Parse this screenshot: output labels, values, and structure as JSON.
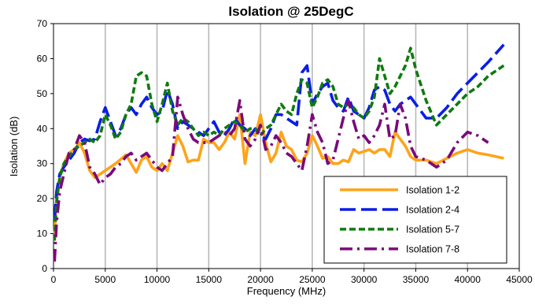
{
  "chart_data": {
    "type": "line",
    "title": "Isolation @ 25DegC",
    "xlabel": "Frequency (MHz)",
    "ylabel": "Isolation (dB)",
    "xlim": [
      0,
      45000
    ],
    "ylim": [
      0,
      70
    ],
    "xticks": [
      0,
      5000,
      10000,
      15000,
      20000,
      25000,
      30000,
      35000,
      40000,
      45000
    ],
    "yticks": [
      0,
      10,
      20,
      30,
      40,
      50,
      60,
      70
    ],
    "grid": "vertical",
    "legend_position": "lower-right",
    "series": [
      {
        "name": "Isolation 1-2",
        "color": "#FFA31A",
        "dash": "solid",
        "x": [
          100,
          300,
          600,
          1000,
          1500,
          2000,
          2500,
          3000,
          3500,
          4000,
          5000,
          6000,
          7000,
          7500,
          8000,
          8500,
          9000,
          9500,
          10000,
          10500,
          11000,
          11500,
          12000,
          12500,
          13000,
          13500,
          14000,
          14500,
          15000,
          15500,
          16000,
          16500,
          17000,
          17500,
          18000,
          18500,
          19000,
          19500,
          20000,
          20500,
          21000,
          21500,
          22000,
          22500,
          23000,
          23500,
          24000,
          24500,
          25000,
          25500,
          26000,
          26500,
          27000,
          27500,
          28000,
          28500,
          29000,
          29500,
          30000,
          30500,
          31000,
          31500,
          32000,
          32500,
          33000,
          33500,
          34000,
          34500,
          35000,
          36000,
          37000,
          38000,
          39000,
          40000,
          41000,
          42000,
          43500
        ],
        "y": [
          10,
          20,
          26,
          30,
          33,
          34,
          36,
          33,
          28,
          26,
          28,
          30,
          32.5,
          30,
          27.5,
          31,
          32,
          29,
          28,
          30,
          28,
          33,
          38,
          35,
          30.5,
          31,
          31,
          37,
          36,
          36,
          34,
          36,
          39,
          37,
          44,
          30,
          39,
          38,
          44,
          36,
          30.5,
          33,
          39,
          35,
          34,
          31,
          30.5,
          33,
          38,
          35,
          31.5,
          32,
          30,
          30,
          31,
          30.5,
          34,
          33,
          33.5,
          34,
          33,
          34,
          34,
          32,
          39,
          37,
          35,
          32,
          31,
          31,
          30,
          31.5,
          33,
          34,
          33,
          32.5,
          31.5
        ]
      },
      {
        "name": "Isolation 2-4",
        "color": "#0A1EE6",
        "dash": "long-dash",
        "x": [
          100,
          300,
          600,
          1000,
          1500,
          2000,
          2500,
          3000,
          3500,
          4000,
          4500,
          5000,
          5500,
          6000,
          6500,
          7000,
          7500,
          8000,
          8500,
          9000,
          9500,
          10000,
          10500,
          11000,
          11500,
          12000,
          12500,
          13000,
          13500,
          14000,
          14500,
          15000,
          15500,
          16000,
          16500,
          17000,
          17500,
          18000,
          18500,
          19000,
          19500,
          20000,
          20500,
          21000,
          21500,
          22000,
          22500,
          23000,
          23500,
          24000,
          24500,
          25000,
          25500,
          26000,
          26500,
          27000,
          27500,
          28000,
          28500,
          29000,
          29500,
          30000,
          30500,
          31000,
          31500,
          32000,
          32500,
          33000,
          33500,
          34000,
          34500,
          35000,
          36000,
          37000,
          38000,
          39000,
          40000,
          41000,
          42000,
          43500
        ],
        "y": [
          14,
          22,
          27,
          29,
          31,
          33,
          36,
          37,
          36.5,
          37,
          42,
          46,
          42,
          38,
          40,
          44,
          46,
          44,
          47,
          49,
          46,
          44,
          45,
          51,
          47,
          40,
          42,
          41,
          40,
          39,
          38,
          40,
          42,
          39,
          38,
          40,
          43,
          41,
          40,
          38,
          40,
          38,
          37,
          40,
          44,
          44,
          43,
          42,
          41,
          56,
          58,
          47,
          50,
          52,
          53,
          48,
          46,
          45,
          49,
          45,
          44,
          43,
          46,
          51,
          52,
          51,
          47,
          45,
          47,
          48,
          49,
          47,
          43,
          43,
          46,
          50,
          53,
          56,
          59,
          64
        ]
      },
      {
        "name": "Isolation 5-7",
        "color": "#0F7A0F",
        "dash": "short-dash",
        "x": [
          100,
          300,
          600,
          1000,
          1500,
          2000,
          2500,
          3000,
          3500,
          4000,
          4500,
          5000,
          5500,
          6000,
          6500,
          7000,
          7500,
          8000,
          8500,
          9000,
          9500,
          10000,
          10500,
          11000,
          11500,
          12000,
          12500,
          13000,
          13500,
          14000,
          14500,
          15000,
          15500,
          16000,
          16500,
          17000,
          17500,
          18000,
          18500,
          19000,
          19500,
          20000,
          20500,
          21000,
          21500,
          22000,
          22500,
          23000,
          23500,
          24000,
          24500,
          25000,
          25500,
          26000,
          26500,
          27000,
          27500,
          28000,
          28500,
          29000,
          29500,
          30000,
          30500,
          31000,
          31500,
          32000,
          32500,
          33000,
          33500,
          34000,
          34500,
          35000,
          36000,
          37000,
          38000,
          39000,
          40000,
          41000,
          42000,
          43500
        ],
        "y": [
          8,
          19,
          26,
          30,
          32,
          34,
          35,
          36,
          37,
          36,
          38,
          44,
          41,
          37,
          39,
          44,
          47,
          55,
          56,
          55,
          47,
          42,
          47,
          53,
          45,
          41,
          43,
          42,
          40,
          38,
          39,
          38,
          39,
          38,
          40,
          41,
          42,
          41,
          39,
          40,
          40,
          38,
          40,
          41,
          44,
          47,
          45,
          44,
          50,
          54,
          53,
          46,
          49,
          53,
          54,
          52,
          47,
          46,
          47,
          46,
          44,
          43,
          45,
          49,
          60,
          55,
          50,
          52,
          55,
          58,
          63,
          57,
          48,
          41,
          44,
          47,
          50,
          52,
          55,
          58
        ]
      },
      {
        "name": "Isolation 7-8",
        "color": "#7A0A7A",
        "dash": "dash-dot",
        "x": [
          100,
          300,
          600,
          1000,
          1500,
          2000,
          2500,
          3000,
          3500,
          4000,
          4500,
          5000,
          5500,
          6000,
          6500,
          7000,
          7500,
          8000,
          8500,
          9000,
          9500,
          10000,
          10500,
          11000,
          11500,
          12000,
          12500,
          13000,
          13500,
          14000,
          14500,
          15000,
          15500,
          16000,
          16500,
          17000,
          17500,
          18000,
          18500,
          19000,
          19500,
          20000,
          20500,
          21000,
          21500,
          22000,
          22500,
          23000,
          23500,
          24000,
          24500,
          25000,
          25500,
          26000,
          26500,
          27000,
          27500,
          28000,
          28500,
          29000,
          29500,
          30000,
          30500,
          31000,
          31500,
          32000,
          32500,
          33000,
          33500,
          34000,
          34500,
          35000,
          36000,
          37000,
          38000,
          39000,
          40000,
          41000,
          42000
        ],
        "y": [
          2,
          13,
          22,
          27,
          33,
          34,
          38,
          36,
          29,
          27,
          24,
          26,
          27,
          29,
          30,
          32,
          33,
          31,
          32,
          33,
          31,
          29,
          28,
          30,
          32,
          49,
          44,
          40,
          37,
          36,
          36,
          36,
          37,
          38,
          39,
          38,
          40,
          48,
          37,
          35,
          37,
          41,
          34,
          35,
          38,
          36,
          33,
          32,
          30,
          28,
          35,
          44,
          39,
          36,
          30,
          31,
          37,
          43,
          48,
          42,
          37,
          38,
          36,
          38,
          41,
          47,
          37,
          38,
          47,
          43,
          35,
          32,
          31,
          29,
          31,
          36,
          39,
          38,
          36
        ]
      }
    ]
  }
}
